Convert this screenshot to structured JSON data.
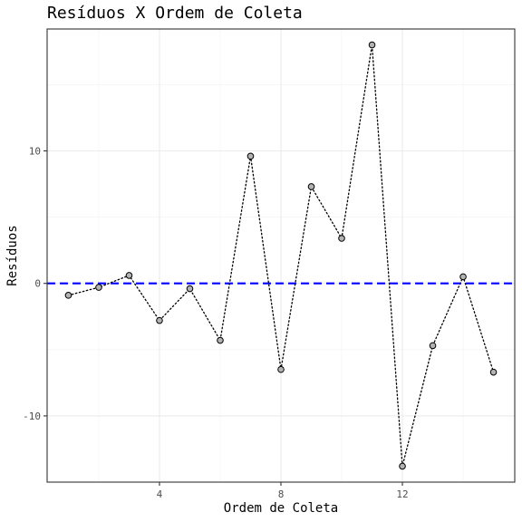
{
  "chart_data": {
    "type": "scatter",
    "title": "Resíduos X Ordem de Coleta",
    "xlabel": "Ordem de Coleta",
    "ylabel": "Resíduos",
    "xlim": [
      0.3,
      15.7
    ],
    "ylim": [
      -15.0,
      19.2
    ],
    "xticks": [
      4,
      8,
      12
    ],
    "xtick_labels": [
      "4",
      "8",
      "12"
    ],
    "xminor": [
      2,
      6,
      10,
      14
    ],
    "yticks": [
      -10,
      0,
      10
    ],
    "ytick_labels": [
      "-10",
      "0",
      "10"
    ],
    "yminor": [
      -5,
      5,
      15
    ],
    "grid": true,
    "reference_line": {
      "y": 0,
      "style": "dashed",
      "color": "#0000ff"
    },
    "connector": {
      "style": "dotted",
      "color": "#000000"
    },
    "point_color": "#b3b3b3",
    "series": [
      {
        "x": [
          1,
          2,
          3,
          4,
          5,
          6,
          7,
          8,
          9,
          10,
          11,
          12,
          13,
          14,
          15
        ],
        "y": [
          -0.9,
          -0.3,
          0.6,
          -2.8,
          -0.4,
          -4.3,
          9.6,
          -6.5,
          7.3,
          3.4,
          18.0,
          -13.8,
          -4.7,
          0.5,
          -6.7
        ]
      }
    ]
  }
}
